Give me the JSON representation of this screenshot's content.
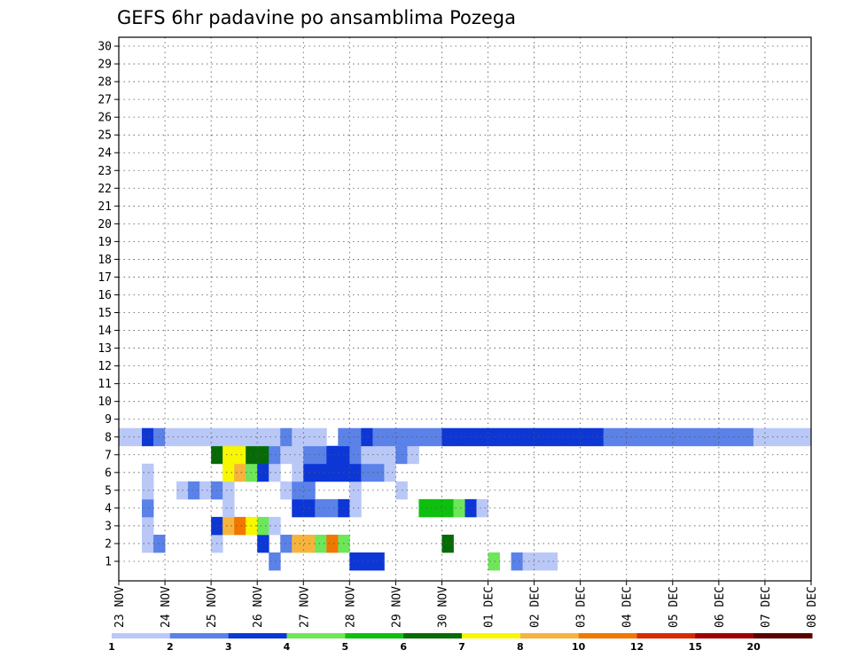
{
  "chart_data": {
    "type": "heatmap",
    "title": "GEFS 6hr padavine po ansamblima Pozega",
    "xlabel": "",
    "ylabel": "",
    "x_ticks": [
      "23 NOV",
      "24 NOV",
      "25 NOV",
      "26 NOV",
      "27 NOV",
      "28 NOV",
      "29 NOV",
      "30 NOV",
      "01 DEC",
      "02 DEC",
      "03 DEC",
      "04 DEC",
      "05 DEC",
      "06 DEC",
      "07 DEC",
      "08 DEC"
    ],
    "y_ticks": [
      "1",
      "2",
      "3",
      "4",
      "5",
      "6",
      "7",
      "8",
      "9",
      "10",
      "11",
      "12",
      "13",
      "14",
      "15",
      "16",
      "17",
      "18",
      "19",
      "20",
      "21",
      "22",
      "23",
      "24",
      "25",
      "26",
      "27",
      "28",
      "29",
      "30"
    ],
    "ensemble_members": 30,
    "steps_per_day": 4,
    "total_steps": 60,
    "grid": true,
    "colorbar": {
      "levels": [
        "1",
        "2",
        "3",
        "4",
        "5",
        "6",
        "7",
        "8",
        "10",
        "12",
        "15",
        "20"
      ],
      "colors": [
        "#b9c8f7",
        "#5a82e8",
        "#0c37d6",
        "#6ee65a",
        "#0fbf0f",
        "#066b06",
        "#f7f700",
        "#f7b43c",
        "#f07800",
        "#d82a00",
        "#a00000",
        "#5a0000"
      ]
    },
    "cells": [
      [
        1,
        13,
        2
      ],
      [
        1,
        20,
        3
      ],
      [
        1,
        21,
        3
      ],
      [
        1,
        22,
        3
      ],
      [
        1,
        32,
        4
      ],
      [
        1,
        34,
        2
      ],
      [
        1,
        35,
        1
      ],
      [
        1,
        36,
        1
      ],
      [
        1,
        37,
        1
      ],
      [
        2,
        2,
        1
      ],
      [
        2,
        3,
        2
      ],
      [
        2,
        8,
        1
      ],
      [
        2,
        12,
        3
      ],
      [
        2,
        14,
        2
      ],
      [
        2,
        15,
        8
      ],
      [
        2,
        16,
        8
      ],
      [
        2,
        17,
        4
      ],
      [
        2,
        18,
        9
      ],
      [
        2,
        19,
        4
      ],
      [
        2,
        28,
        6
      ],
      [
        3,
        2,
        1
      ],
      [
        3,
        8,
        3
      ],
      [
        3,
        9,
        8
      ],
      [
        3,
        10,
        9
      ],
      [
        3,
        11,
        7
      ],
      [
        3,
        12,
        4
      ],
      [
        3,
        13,
        1
      ],
      [
        4,
        2,
        2
      ],
      [
        4,
        9,
        1
      ],
      [
        4,
        15,
        3
      ],
      [
        4,
        16,
        3
      ],
      [
        4,
        17,
        2
      ],
      [
        4,
        18,
        2
      ],
      [
        4,
        19,
        3
      ],
      [
        4,
        20,
        1
      ],
      [
        4,
        26,
        5
      ],
      [
        4,
        27,
        5
      ],
      [
        4,
        28,
        5
      ],
      [
        4,
        29,
        4
      ],
      [
        4,
        30,
        3
      ],
      [
        4,
        31,
        1
      ],
      [
        5,
        2,
        1
      ],
      [
        5,
        5,
        1
      ],
      [
        5,
        6,
        2
      ],
      [
        5,
        7,
        1
      ],
      [
        5,
        8,
        2
      ],
      [
        5,
        9,
        1
      ],
      [
        5,
        14,
        1
      ],
      [
        5,
        15,
        2
      ],
      [
        5,
        16,
        2
      ],
      [
        5,
        20,
        1
      ],
      [
        5,
        24,
        1
      ],
      [
        6,
        2,
        1
      ],
      [
        6,
        9,
        7
      ],
      [
        6,
        10,
        8
      ],
      [
        6,
        11,
        4
      ],
      [
        6,
        12,
        3
      ],
      [
        6,
        13,
        1
      ],
      [
        6,
        15,
        1
      ],
      [
        6,
        16,
        3
      ],
      [
        6,
        17,
        3
      ],
      [
        6,
        18,
        3
      ],
      [
        6,
        19,
        3
      ],
      [
        6,
        20,
        3
      ],
      [
        6,
        21,
        2
      ],
      [
        6,
        22,
        2
      ],
      [
        6,
        23,
        1
      ],
      [
        7,
        8,
        6
      ],
      [
        7,
        9,
        7
      ],
      [
        7,
        10,
        7
      ],
      [
        7,
        11,
        6
      ],
      [
        7,
        12,
        6
      ],
      [
        7,
        13,
        2
      ],
      [
        7,
        14,
        1
      ],
      [
        7,
        15,
        1
      ],
      [
        7,
        16,
        2
      ],
      [
        7,
        17,
        2
      ],
      [
        7,
        18,
        3
      ],
      [
        7,
        19,
        3
      ],
      [
        7,
        20,
        2
      ],
      [
        7,
        21,
        1
      ],
      [
        7,
        22,
        1
      ],
      [
        7,
        23,
        1
      ],
      [
        7,
        24,
        2
      ],
      [
        7,
        25,
        1
      ],
      [
        8,
        0,
        1
      ],
      [
        8,
        1,
        1
      ],
      [
        8,
        2,
        3
      ],
      [
        8,
        3,
        2
      ],
      [
        8,
        4,
        1
      ],
      [
        8,
        5,
        1
      ],
      [
        8,
        6,
        1
      ],
      [
        8,
        7,
        1
      ],
      [
        8,
        8,
        1
      ],
      [
        8,
        9,
        1
      ],
      [
        8,
        10,
        1
      ],
      [
        8,
        11,
        1
      ],
      [
        8,
        12,
        1
      ],
      [
        8,
        13,
        1
      ],
      [
        8,
        14,
        2
      ],
      [
        8,
        15,
        1
      ],
      [
        8,
        16,
        1
      ],
      [
        8,
        17,
        1
      ],
      [
        8,
        19,
        2
      ],
      [
        8,
        20,
        2
      ],
      [
        8,
        21,
        3
      ],
      [
        8,
        22,
        2
      ],
      [
        8,
        23,
        2
      ],
      [
        8,
        24,
        2
      ],
      [
        8,
        25,
        2
      ],
      [
        8,
        26,
        2
      ],
      [
        8,
        27,
        2
      ],
      [
        8,
        28,
        3
      ],
      [
        8,
        29,
        3
      ],
      [
        8,
        30,
        3
      ],
      [
        8,
        31,
        3
      ],
      [
        8,
        32,
        3
      ],
      [
        8,
        33,
        3
      ],
      [
        8,
        34,
        3
      ],
      [
        8,
        35,
        3
      ],
      [
        8,
        36,
        3
      ],
      [
        8,
        37,
        3
      ],
      [
        8,
        38,
        3
      ],
      [
        8,
        39,
        3
      ],
      [
        8,
        40,
        3
      ],
      [
        8,
        41,
        3
      ],
      [
        8,
        42,
        2
      ],
      [
        8,
        43,
        2
      ],
      [
        8,
        44,
        2
      ],
      [
        8,
        45,
        2
      ],
      [
        8,
        46,
        2
      ],
      [
        8,
        47,
        2
      ],
      [
        8,
        48,
        2
      ],
      [
        8,
        49,
        2
      ],
      [
        8,
        50,
        2
      ],
      [
        8,
        51,
        2
      ],
      [
        8,
        52,
        2
      ],
      [
        8,
        53,
        2
      ],
      [
        8,
        54,
        2
      ],
      [
        8,
        55,
        1
      ],
      [
        8,
        56,
        1
      ],
      [
        8,
        57,
        1
      ],
      [
        8,
        58,
        1
      ],
      [
        8,
        59,
        1
      ]
    ]
  }
}
